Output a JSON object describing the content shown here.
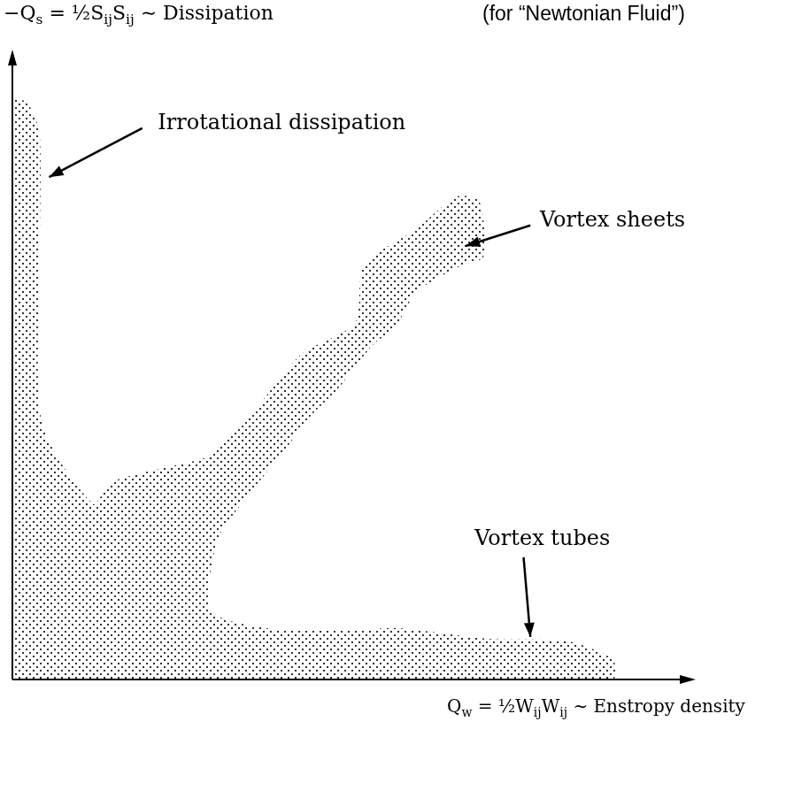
{
  "chart_data": {
    "type": "area",
    "ylabel": [
      "−Q",
      {
        "sub": "s"
      },
      " = ½S",
      {
        "sub": "ij"
      },
      "S",
      {
        "sub": "ij"
      },
      " ∼ Dissipation"
    ],
    "ylabel_note": "(for “Newtonian Fluid”)",
    "xlabel": [
      "Q",
      {
        "sub": "w"
      },
      " = ½W",
      {
        "sub": "ij"
      },
      "W",
      {
        "sub": "ij"
      },
      " ∼ Enstropy density"
    ],
    "x": [
      0,
      0,
      0.21,
      0.4,
      0.4,
      0.44,
      1.19,
      1.45,
      2.43,
      2.89,
      3.6,
      4.26,
      5.04,
      5.17,
      5.95,
      6.54,
      6.87,
      6.93,
      6.61,
      5.95,
      5.63,
      5.3,
      4.78,
      4.39,
      3.99,
      3.47,
      3.02,
      2.92,
      3.73,
      5.04,
      5.69,
      7.0,
      8.17,
      8.83,
      8.83,
      0
    ],
    "values": [
      0,
      9.22,
      9.22,
      8.73,
      6.61,
      4.07,
      2.8,
      3.15,
      3.43,
      3.57,
      4.35,
      5.2,
      5.69,
      6.61,
      7.2,
      7.71,
      7.63,
      6.75,
      6.61,
      6.19,
      5.62,
      5.34,
      4.63,
      4.21,
      3.64,
      2.94,
      2.23,
      1.1,
      0.82,
      0.79,
      0.82,
      0.65,
      0.61,
      0.32,
      0,
      0
    ],
    "color": "#000000",
    "xlim": [
      0,
      10
    ],
    "ylim": [
      0,
      10
    ],
    "tick_labels": false,
    "grid": false,
    "annotations": [
      {
        "text": "Irrotational dissipation",
        "text_at": [
          2.14,
          8.87
        ],
        "arrow_from": [
          1.91,
          8.8
        ],
        "point": [
          0.54,
          8.02
        ]
      },
      {
        "text": "Vortex sheets",
        "text_at": [
          7.76,
          7.32
        ],
        "arrow_from": [
          7.62,
          7.25
        ],
        "point": [
          6.67,
          6.92
        ]
      },
      {
        "text": "Vortex tubes",
        "text_at": [
          6.8,
          2.23
        ],
        "arrow_from": [
          7.52,
          1.95
        ],
        "point": [
          7.62,
          0.68
        ]
      }
    ]
  }
}
